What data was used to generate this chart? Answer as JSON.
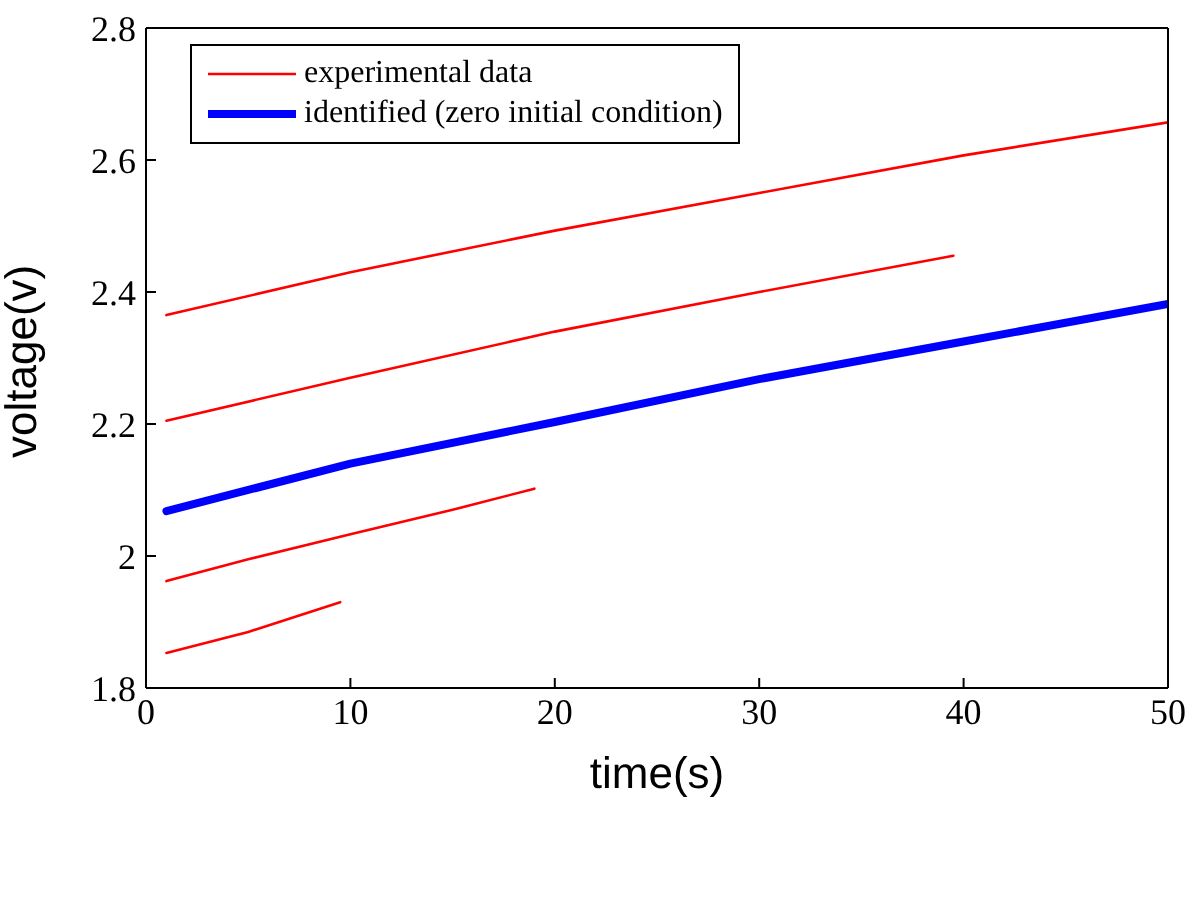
{
  "chart_data": {
    "type": "line",
    "xlabel": "time(s)",
    "ylabel": "voltage(v)",
    "xlim": [
      0,
      50
    ],
    "ylim": [
      1.8,
      2.8
    ],
    "xticks": [
      0,
      10,
      20,
      30,
      40,
      50
    ],
    "yticks": [
      1.8,
      2,
      2.2,
      2.4,
      2.6,
      2.8
    ],
    "legend": "top left",
    "marker": "none",
    "line_style": "solid",
    "series": [
      {
        "name": "experimental data",
        "color": "#ff0000",
        "x": [
          1,
          10,
          20,
          30,
          40,
          50
        ],
        "values": [
          2.365,
          2.43,
          2.493,
          2.55,
          2.607,
          2.657
        ]
      },
      {
        "color": "#ff0000",
        "x": [
          1,
          10,
          20,
          30,
          39.5
        ],
        "values": [
          2.205,
          2.27,
          2.34,
          2.4,
          2.455
        ]
      },
      {
        "color": "#ff0000",
        "x": [
          1,
          5,
          10,
          15,
          19
        ],
        "values": [
          1.962,
          1.995,
          2.033,
          2.07,
          2.102
        ]
      },
      {
        "color": "#ff0000",
        "x": [
          1,
          5,
          9.5
        ],
        "values": [
          1.853,
          1.885,
          1.93
        ]
      },
      {
        "name": "identified (zero initial condition)",
        "color": "#0000ff",
        "x": [
          1,
          10,
          20,
          30,
          40,
          50
        ],
        "values": [
          2.068,
          2.14,
          2.203,
          2.268,
          2.325,
          2.382
        ]
      }
    ]
  }
}
